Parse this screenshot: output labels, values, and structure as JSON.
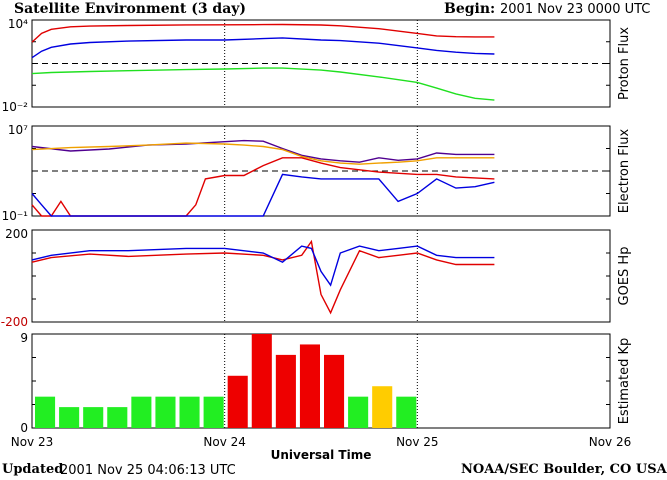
{
  "header": {
    "title": "Satellite Environment (3 day)",
    "begin_label": "Begin:",
    "begin_value": "2001 Nov 23 0000 UTC"
  },
  "footer": {
    "updated_label": "Updated",
    "updated_value": "2001 Nov 25 04:06:13 UTC",
    "credit": "NOAA/SEC Boulder, CO USA"
  },
  "colors": {
    "red": "#e00000",
    "blue": "#0000e0",
    "green": "#20e020",
    "purple": "#500090",
    "orange": "#f0a000",
    "kp_green": "#22ee22",
    "kp_red": "#ee0000",
    "kp_yellow": "#ffcc00"
  },
  "chart_data": [
    {
      "type": "line",
      "panel_label": "Proton Flux",
      "y_scale": "log",
      "ylim": [
        0.01,
        10000
      ],
      "tick_labels": [
        "10⁴",
        "10⁻²"
      ],
      "threshold_line": 10,
      "x_unit": "days from 2001 Nov 23 0000 UTC",
      "series": [
        {
          "color": "red",
          "x": [
            0,
            0.05,
            0.1,
            0.2,
            0.3,
            0.5,
            0.8,
            1.0,
            1.2,
            1.3,
            1.5,
            1.6,
            1.8,
            2.0,
            2.1,
            2.2,
            2.3,
            2.4
          ],
          "y": [
            300,
            1200,
            2300,
            3400,
            3800,
            4200,
            4600,
            4700,
            4800,
            4900,
            4500,
            4000,
            2500,
            1200,
            800,
            700,
            680,
            680
          ]
        },
        {
          "color": "blue",
          "x": [
            0,
            0.05,
            0.1,
            0.2,
            0.3,
            0.5,
            0.8,
            1.0,
            1.2,
            1.3,
            1.5,
            1.6,
            1.8,
            2.0,
            2.1,
            2.2,
            2.3,
            2.4
          ],
          "y": [
            25,
            70,
            130,
            220,
            280,
            350,
            420,
            420,
            520,
            580,
            420,
            380,
            250,
            120,
            80,
            60,
            50,
            45
          ]
        },
        {
          "color": "green",
          "x": [
            0,
            0.1,
            0.3,
            0.5,
            0.8,
            1.0,
            1.2,
            1.3,
            1.5,
            1.6,
            1.8,
            2.0,
            2.1,
            2.2,
            2.3,
            2.4
          ],
          "y": [
            2,
            2.4,
            2.8,
            3.2,
            3.8,
            4.2,
            4.8,
            4.8,
            3.5,
            2.6,
            1.2,
            0.5,
            0.2,
            0.08,
            0.04,
            0.03
          ]
        }
      ]
    },
    {
      "type": "line",
      "panel_label": "Electron Flux",
      "y_scale": "log",
      "ylim": [
        0.1,
        10000000
      ],
      "tick_labels": [
        "10⁷",
        "10⁻¹"
      ],
      "threshold_line": 1000,
      "series": [
        {
          "color": "purple",
          "x": [
            0,
            0.2,
            0.4,
            0.6,
            0.8,
            1.0,
            1.1,
            1.2,
            1.3,
            1.4,
            1.5,
            1.6,
            1.7,
            1.8,
            1.9,
            2.0,
            2.1,
            2.2,
            2.3,
            2.4
          ],
          "y": [
            150000,
            60000,
            90000,
            200000,
            250000,
            400000,
            500000,
            450000,
            100000,
            25000,
            12000,
            8000,
            6000,
            15000,
            9000,
            12000,
            40000,
            30000,
            30000,
            30000
          ]
        },
        {
          "color": "orange",
          "x": [
            0,
            0.2,
            0.4,
            0.6,
            0.8,
            1.0,
            1.1,
            1.2,
            1.3,
            1.4,
            1.5,
            1.6,
            1.7,
            1.8,
            1.9,
            2.0,
            2.1,
            2.2,
            2.3,
            2.4
          ],
          "y": [
            80000,
            120000,
            150000,
            200000,
            300000,
            250000,
            200000,
            150000,
            80000,
            20000,
            8000,
            5000,
            4000,
            5000,
            6000,
            8000,
            15000,
            15000,
            15000,
            15000
          ]
        },
        {
          "color": "red",
          "x": [
            0,
            0.05,
            0.1,
            0.15,
            0.2,
            0.3,
            0.5,
            0.8,
            0.85,
            0.9,
            1.0,
            1.1,
            1.2,
            1.3,
            1.4,
            1.5,
            1.6,
            1.8,
            2.0,
            2.1,
            2.2,
            2.4
          ],
          "y": [
            1,
            0.1,
            0.1,
            2,
            0.1,
            0.1,
            0.1,
            0.1,
            1,
            200,
            400,
            400,
            3000,
            15000,
            15000,
            5000,
            2000,
            800,
            500,
            500,
            300,
            200
          ]
        },
        {
          "color": "blue",
          "x": [
            0,
            0.05,
            0.1,
            0.5,
            1.0,
            1.2,
            1.3,
            1.4,
            1.5,
            1.8,
            1.9,
            2.0,
            2.1,
            2.2,
            2.3,
            2.4
          ],
          "y": [
            10,
            1,
            0.1,
            0.1,
            0.1,
            0.1,
            500,
            300,
            200,
            200,
            2,
            10,
            200,
            30,
            40,
            100
          ]
        }
      ]
    },
    {
      "type": "line",
      "panel_label": "GOES Hp",
      "ylim": [
        -200,
        200
      ],
      "tick_labels": [
        "200",
        "-200"
      ],
      "series": [
        {
          "color": "red",
          "x": [
            0,
            0.1,
            0.3,
            0.5,
            0.8,
            1.0,
            1.2,
            1.3,
            1.4,
            1.45,
            1.5,
            1.55,
            1.6,
            1.7,
            1.8,
            1.9,
            2.0,
            2.1,
            2.2,
            2.4
          ],
          "y": [
            60,
            80,
            95,
            85,
            95,
            100,
            90,
            70,
            90,
            150,
            -80,
            -160,
            -60,
            110,
            80,
            90,
            100,
            70,
            50,
            50
          ]
        },
        {
          "color": "blue",
          "x": [
            0,
            0.1,
            0.3,
            0.5,
            0.8,
            1.0,
            1.2,
            1.3,
            1.4,
            1.45,
            1.5,
            1.55,
            1.6,
            1.7,
            1.8,
            1.9,
            2.0,
            2.1,
            2.2,
            2.4
          ],
          "y": [
            70,
            90,
            110,
            110,
            120,
            120,
            100,
            60,
            130,
            120,
            20,
            -40,
            100,
            130,
            110,
            120,
            130,
            90,
            80,
            80
          ]
        }
      ]
    },
    {
      "type": "bar",
      "panel_label": "Estimated Kp",
      "ylim": [
        0,
        9
      ],
      "tick_labels": [
        "9",
        "0"
      ],
      "x_unit": "3-hour intervals from 2001 Nov 23 0000 UTC",
      "values": [
        3,
        2,
        2,
        2,
        3,
        3,
        3,
        3,
        5,
        9,
        7,
        8,
        7,
        3,
        4,
        3
      ],
      "bar_colors": [
        "green",
        "green",
        "green",
        "green",
        "green",
        "green",
        "green",
        "green",
        "red",
        "red",
        "red",
        "red",
        "red",
        "green",
        "yellow",
        "green"
      ]
    }
  ],
  "x_axis": {
    "tick_labels": [
      "Nov 23",
      "Nov 24",
      "Nov 25",
      "Nov 26"
    ],
    "label": "Universal Time"
  }
}
